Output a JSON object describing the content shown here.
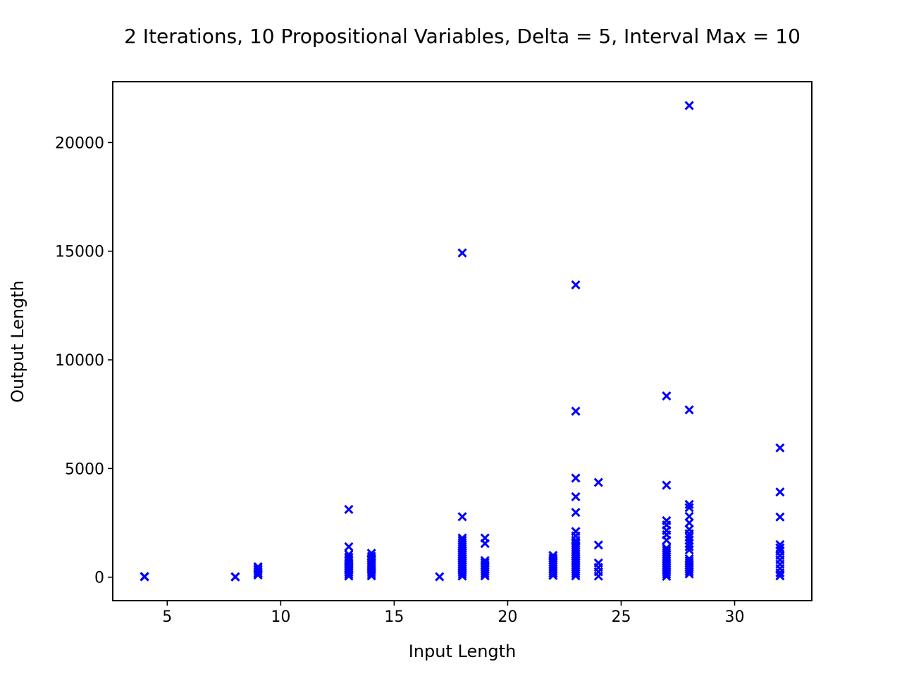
{
  "chart_data": {
    "type": "scatter",
    "title": "2 Iterations, 10 Propositional Variables, Delta = 5, Interval Max = 10",
    "xlabel": "Input Length",
    "ylabel": "Output Length",
    "xlim": [
      2.6,
      33.4
    ],
    "ylim": [
      -1080,
      22800
    ],
    "xticks": [
      5,
      10,
      15,
      20,
      25,
      30
    ],
    "yticks": [
      0,
      5000,
      10000,
      15000,
      20000
    ],
    "grid": false,
    "marker": "x",
    "color": "#0000ff",
    "points": [
      [
        4,
        20
      ],
      [
        4,
        30
      ],
      [
        8,
        10
      ],
      [
        8,
        20
      ],
      [
        9,
        100
      ],
      [
        9,
        180
      ],
      [
        9,
        260
      ],
      [
        9,
        340
      ],
      [
        9,
        420
      ],
      [
        9,
        480
      ],
      [
        13,
        50
      ],
      [
        13,
        130
      ],
      [
        13,
        220
      ],
      [
        13,
        310
      ],
      [
        13,
        400
      ],
      [
        13,
        480
      ],
      [
        13,
        560
      ],
      [
        13,
        650
      ],
      [
        13,
        740
      ],
      [
        13,
        830
      ],
      [
        13,
        920
      ],
      [
        13,
        1050
      ],
      [
        13,
        1400
      ],
      [
        13,
        3120
      ],
      [
        14,
        60
      ],
      [
        14,
        150
      ],
      [
        14,
        240
      ],
      [
        14,
        330
      ],
      [
        14,
        420
      ],
      [
        14,
        510
      ],
      [
        14,
        600
      ],
      [
        14,
        690
      ],
      [
        14,
        780
      ],
      [
        14,
        870
      ],
      [
        14,
        960
      ],
      [
        14,
        1100
      ],
      [
        17,
        20
      ],
      [
        18,
        50
      ],
      [
        18,
        140
      ],
      [
        18,
        230
      ],
      [
        18,
        320
      ],
      [
        18,
        410
      ],
      [
        18,
        500
      ],
      [
        18,
        590
      ],
      [
        18,
        680
      ],
      [
        18,
        770
      ],
      [
        18,
        860
      ],
      [
        18,
        950
      ],
      [
        18,
        1040
      ],
      [
        18,
        1130
      ],
      [
        18,
        1220
      ],
      [
        18,
        1310
      ],
      [
        18,
        1400
      ],
      [
        18,
        1500
      ],
      [
        18,
        1600
      ],
      [
        18,
        1700
      ],
      [
        18,
        1800
      ],
      [
        18,
        2780
      ],
      [
        18,
        14920
      ],
      [
        19,
        60
      ],
      [
        19,
        160
      ],
      [
        19,
        260
      ],
      [
        19,
        360
      ],
      [
        19,
        460
      ],
      [
        19,
        560
      ],
      [
        19,
        660
      ],
      [
        19,
        760
      ],
      [
        19,
        1550
      ],
      [
        19,
        1800
      ],
      [
        22,
        80
      ],
      [
        22,
        180
      ],
      [
        22,
        280
      ],
      [
        22,
        380
      ],
      [
        22,
        480
      ],
      [
        22,
        580
      ],
      [
        22,
        680
      ],
      [
        22,
        780
      ],
      [
        22,
        880
      ],
      [
        22,
        1000
      ],
      [
        23,
        60
      ],
      [
        23,
        160
      ],
      [
        23,
        260
      ],
      [
        23,
        360
      ],
      [
        23,
        460
      ],
      [
        23,
        560
      ],
      [
        23,
        660
      ],
      [
        23,
        760
      ],
      [
        23,
        860
      ],
      [
        23,
        960
      ],
      [
        23,
        1060
      ],
      [
        23,
        1160
      ],
      [
        23,
        1260
      ],
      [
        23,
        1360
      ],
      [
        23,
        1460
      ],
      [
        23,
        1560
      ],
      [
        23,
        1700
      ],
      [
        23,
        1900
      ],
      [
        23,
        2100
      ],
      [
        23,
        2980
      ],
      [
        23,
        3700
      ],
      [
        23,
        4560
      ],
      [
        23,
        7640
      ],
      [
        23,
        13450
      ],
      [
        24,
        50
      ],
      [
        24,
        250
      ],
      [
        24,
        450
      ],
      [
        24,
        650
      ],
      [
        24,
        1480
      ],
      [
        24,
        4360
      ],
      [
        27,
        40
      ],
      [
        27,
        140
      ],
      [
        27,
        240
      ],
      [
        27,
        340
      ],
      [
        27,
        440
      ],
      [
        27,
        540
      ],
      [
        27,
        640
      ],
      [
        27,
        740
      ],
      [
        27,
        840
      ],
      [
        27,
        940
      ],
      [
        27,
        1040
      ],
      [
        27,
        1140
      ],
      [
        27,
        1240
      ],
      [
        27,
        1340
      ],
      [
        27,
        1700
      ],
      [
        27,
        1950
      ],
      [
        27,
        2150
      ],
      [
        27,
        2400
      ],
      [
        27,
        2600
      ],
      [
        27,
        4230
      ],
      [
        27,
        8340
      ],
      [
        28,
        150
      ],
      [
        28,
        250
      ],
      [
        28,
        350
      ],
      [
        28,
        450
      ],
      [
        28,
        550
      ],
      [
        28,
        650
      ],
      [
        28,
        750
      ],
      [
        28,
        850
      ],
      [
        28,
        1250
      ],
      [
        28,
        1400
      ],
      [
        28,
        1550
      ],
      [
        28,
        1700
      ],
      [
        28,
        1850
      ],
      [
        28,
        2000
      ],
      [
        28,
        2200
      ],
      [
        28,
        2500
      ],
      [
        28,
        2800
      ],
      [
        28,
        3200
      ],
      [
        28,
        3350
      ],
      [
        28,
        7700
      ],
      [
        28,
        21700
      ],
      [
        32,
        60
      ],
      [
        32,
        200
      ],
      [
        32,
        400
      ],
      [
        32,
        600
      ],
      [
        32,
        800
      ],
      [
        32,
        1000
      ],
      [
        32,
        1200
      ],
      [
        32,
        1350
      ],
      [
        32,
        1500
      ],
      [
        32,
        2770
      ],
      [
        32,
        3920
      ],
      [
        32,
        5950
      ]
    ]
  }
}
